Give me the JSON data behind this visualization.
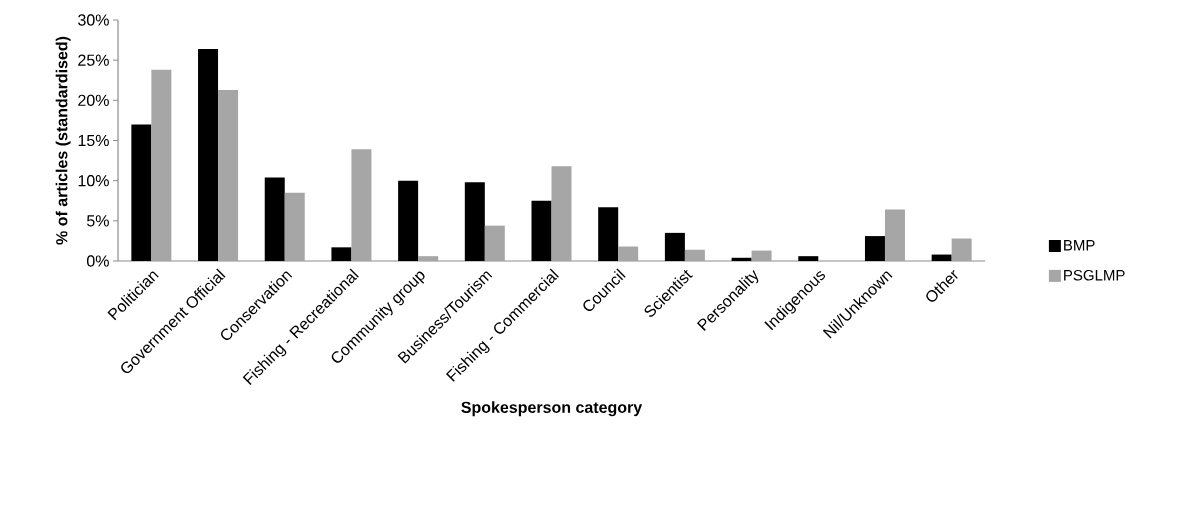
{
  "chart_data": {
    "type": "bar",
    "xlabel": "Spokesperson category",
    "ylabel": "% of articles (standardised)",
    "categories": [
      "Politician",
      "Government Official",
      "Conservation",
      "Fishing - Recreational",
      "Community group",
      "Business/Tourism",
      "Fishing - Commercial",
      "Council",
      "Scientist",
      "Personality",
      "Indigenous",
      "Nil/Unknown",
      "Other"
    ],
    "series": [
      {
        "name": "BMP",
        "color": "#000000",
        "values": [
          17.0,
          26.4,
          10.4,
          1.7,
          10.0,
          9.8,
          7.5,
          6.7,
          3.5,
          0.4,
          0.6,
          3.1,
          0.8
        ]
      },
      {
        "name": "PSGLMP",
        "color": "#a6a6a6",
        "values": [
          23.8,
          21.3,
          8.5,
          13.9,
          0.6,
          4.4,
          11.8,
          1.8,
          1.4,
          1.3,
          0,
          6.4,
          2.8
        ]
      }
    ],
    "ylim": [
      0,
      30
    ],
    "yticks": [
      {
        "value": 0,
        "label": "0%"
      },
      {
        "value": 5,
        "label": "5%"
      },
      {
        "value": 10,
        "label": "10%"
      },
      {
        "value": 15,
        "label": "15%"
      },
      {
        "value": 20,
        "label": "20%"
      },
      {
        "value": 25,
        "label": "25%"
      },
      {
        "value": 30,
        "label": "30%"
      }
    ],
    "legend": "right",
    "grid": false
  }
}
